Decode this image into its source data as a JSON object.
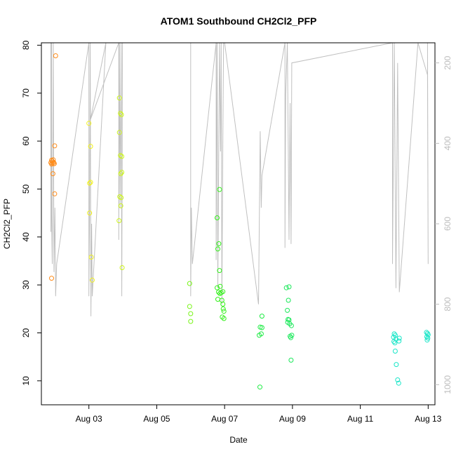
{
  "chart_data": {
    "type": "scatter",
    "title": "ATOM1 Southbound CH2Cl2_PFP",
    "xlabel": "Date",
    "ylabel": "CH2Cl2_PFP",
    "x_unit": "days",
    "xlim": [
      1.6,
      13.2
    ],
    "ylim": [
      5.0,
      80.5
    ],
    "x_ticks": [
      {
        "value": 3,
        "label": "Aug 03"
      },
      {
        "value": 5,
        "label": "Aug 05"
      },
      {
        "value": 7,
        "label": "Aug 07"
      },
      {
        "value": 9,
        "label": "Aug 09"
      },
      {
        "value": 11,
        "label": "Aug 11"
      },
      {
        "value": 13,
        "label": "Aug 13"
      }
    ],
    "y_ticks": [
      10,
      20,
      30,
      40,
      50,
      60,
      70,
      80
    ],
    "right_axis": {
      "range": [
        1050,
        150
      ],
      "ticks": [
        200,
        400,
        600,
        800,
        1000
      ],
      "color": "#bdbdbd"
    },
    "marker": "open-circle",
    "series": [
      {
        "color": "#ff8c1a",
        "points": [
          [
            1.88,
            55.5
          ],
          [
            1.9,
            56
          ],
          [
            1.9,
            55.2
          ],
          [
            1.92,
            55.8
          ],
          [
            1.93,
            55.4
          ],
          [
            1.95,
            56.1
          ],
          [
            1.96,
            55.6
          ],
          [
            1.97,
            55.3
          ],
          [
            1.94,
            53.2
          ],
          [
            1.99,
            49
          ],
          [
            1.99,
            59
          ],
          [
            1.98,
            55.3
          ],
          [
            2.02,
            77.8
          ],
          [
            1.9,
            31.4
          ]
        ]
      },
      {
        "color": "#f2f21a",
        "points": [
          [
            3.0,
            63.7
          ],
          [
            3.05,
            58.9
          ],
          [
            3.02,
            51.2
          ],
          [
            3.05,
            51.4
          ],
          [
            3.02,
            45
          ],
          [
            3.07,
            35.8
          ],
          [
            3.1,
            31
          ]
        ]
      },
      {
        "color": "#cdf51a",
        "points": [
          [
            3.9,
            69
          ],
          [
            3.93,
            65.8
          ],
          [
            3.96,
            65.5
          ],
          [
            3.9,
            61.8
          ],
          [
            3.93,
            57
          ],
          [
            3.97,
            56.8
          ],
          [
            3.94,
            53.2
          ],
          [
            3.97,
            53.5
          ],
          [
            3.91,
            48.4
          ],
          [
            3.95,
            48.2
          ],
          [
            3.94,
            46.5
          ],
          [
            3.89,
            43.4
          ],
          [
            3.98,
            33.6
          ]
        ]
      },
      {
        "color": "#7af51a",
        "points": [
          [
            5.97,
            30.3
          ],
          [
            5.97,
            25.5
          ],
          [
            6.0,
            24
          ],
          [
            6.0,
            22.4
          ]
        ]
      },
      {
        "color": "#33f01a",
        "points": [
          [
            6.78,
            44
          ],
          [
            6.85,
            49.9
          ],
          [
            6.83,
            38.6
          ],
          [
            6.8,
            37.5
          ],
          [
            6.85,
            33
          ],
          [
            6.78,
            29.4
          ],
          [
            6.87,
            29.7
          ],
          [
            6.82,
            28.5
          ],
          [
            6.86,
            28.2
          ],
          [
            6.9,
            28.4
          ],
          [
            6.95,
            28.6
          ],
          [
            6.8,
            27
          ],
          [
            6.92,
            26.8
          ],
          [
            6.95,
            26
          ],
          [
            6.96,
            25
          ],
          [
            6.98,
            24.5
          ],
          [
            6.93,
            23.3
          ],
          [
            6.98,
            23
          ]
        ]
      },
      {
        "color": "#1aeb40",
        "points": [
          [
            8.1,
            23.5
          ],
          [
            8.05,
            21.2
          ],
          [
            8.1,
            21.1
          ],
          [
            8.02,
            19.5
          ],
          [
            8.08,
            19.8
          ],
          [
            8.04,
            8.7
          ]
        ]
      },
      {
        "color": "#1ae85a",
        "points": [
          [
            8.82,
            29.4
          ],
          [
            8.9,
            29.6
          ],
          [
            8.88,
            26.8
          ],
          [
            8.85,
            24.7
          ],
          [
            8.87,
            22.8
          ],
          [
            8.9,
            22.7
          ],
          [
            8.86,
            22.2
          ],
          [
            8.92,
            21.9
          ],
          [
            8.97,
            21.5
          ],
          [
            8.93,
            19.3
          ],
          [
            8.98,
            19.5
          ],
          [
            8.95,
            19
          ],
          [
            8.96,
            14.3
          ]
        ]
      },
      {
        "color": "#1ae6c8",
        "points": [
          [
            12.0,
            19.8
          ],
          [
            12.03,
            19.5
          ],
          [
            11.98,
            19.1
          ],
          [
            12.05,
            18.7
          ],
          [
            12.15,
            18.9
          ],
          [
            11.99,
            18.2
          ],
          [
            12.02,
            17.9
          ],
          [
            12.14,
            18.3
          ],
          [
            12.03,
            16.2
          ],
          [
            12.06,
            13.4
          ],
          [
            12.1,
            10.2
          ],
          [
            12.13,
            9.5
          ],
          [
            12.95,
            20.1
          ],
          [
            12.98,
            19.9
          ],
          [
            13.0,
            19.6
          ],
          [
            12.96,
            19.2
          ],
          [
            12.99,
            18.9
          ],
          [
            12.97,
            18.5
          ]
        ]
      }
    ],
    "altitude_trace": {
      "color": "#c0c0c0",
      "note": "grey line plotted against right axis",
      "points": [
        [
          1.88,
          150
        ],
        [
          1.88,
          620
        ],
        [
          1.9,
          150
        ],
        [
          1.9,
          580
        ],
        [
          1.92,
          700
        ],
        [
          1.95,
          150
        ],
        [
          1.97,
          720
        ],
        [
          2.0,
          560
        ],
        [
          2.02,
          780
        ],
        [
          2.05,
          700
        ],
        [
          3.0,
          150
        ],
        [
          3.0,
          780
        ],
        [
          3.02,
          580
        ],
        [
          3.04,
          150
        ],
        [
          3.06,
          830
        ],
        [
          3.08,
          600
        ],
        [
          3.1,
          780
        ],
        [
          3.5,
          150
        ],
        [
          3.05,
          340
        ],
        [
          3.88,
          150
        ],
        [
          3.88,
          640
        ],
        [
          3.9,
          150
        ],
        [
          3.92,
          560
        ],
        [
          3.95,
          150
        ],
        [
          3.97,
          780
        ],
        [
          3.99,
          150
        ],
        [
          6.0,
          150
        ],
        [
          6.0,
          780
        ],
        [
          6.02,
          560
        ],
        [
          6.05,
          700
        ],
        [
          6.75,
          150
        ],
        [
          6.75,
          690
        ],
        [
          6.78,
          150
        ],
        [
          6.8,
          760
        ],
        [
          6.85,
          150
        ],
        [
          6.88,
          420
        ],
        [
          6.9,
          150
        ],
        [
          6.92,
          800
        ],
        [
          6.95,
          380
        ],
        [
          6.97,
          150
        ],
        [
          7.0,
          150
        ],
        [
          8.0,
          800
        ],
        [
          8.05,
          370
        ],
        [
          8.08,
          560
        ],
        [
          8.1,
          480
        ],
        [
          8.78,
          150
        ],
        [
          8.78,
          660
        ],
        [
          8.8,
          280
        ],
        [
          8.85,
          150
        ],
        [
          8.9,
          640
        ],
        [
          8.93,
          300
        ],
        [
          8.96,
          650
        ],
        [
          8.98,
          200
        ],
        [
          11.95,
          150
        ],
        [
          11.95,
          700
        ],
        [
          12.0,
          150
        ],
        [
          12.05,
          760
        ],
        [
          12.1,
          200
        ],
        [
          12.15,
          770
        ],
        [
          12.7,
          150
        ],
        [
          12.98,
          230
        ],
        [
          13.0,
          700
        ],
        [
          12.98,
          150
        ]
      ]
    }
  }
}
